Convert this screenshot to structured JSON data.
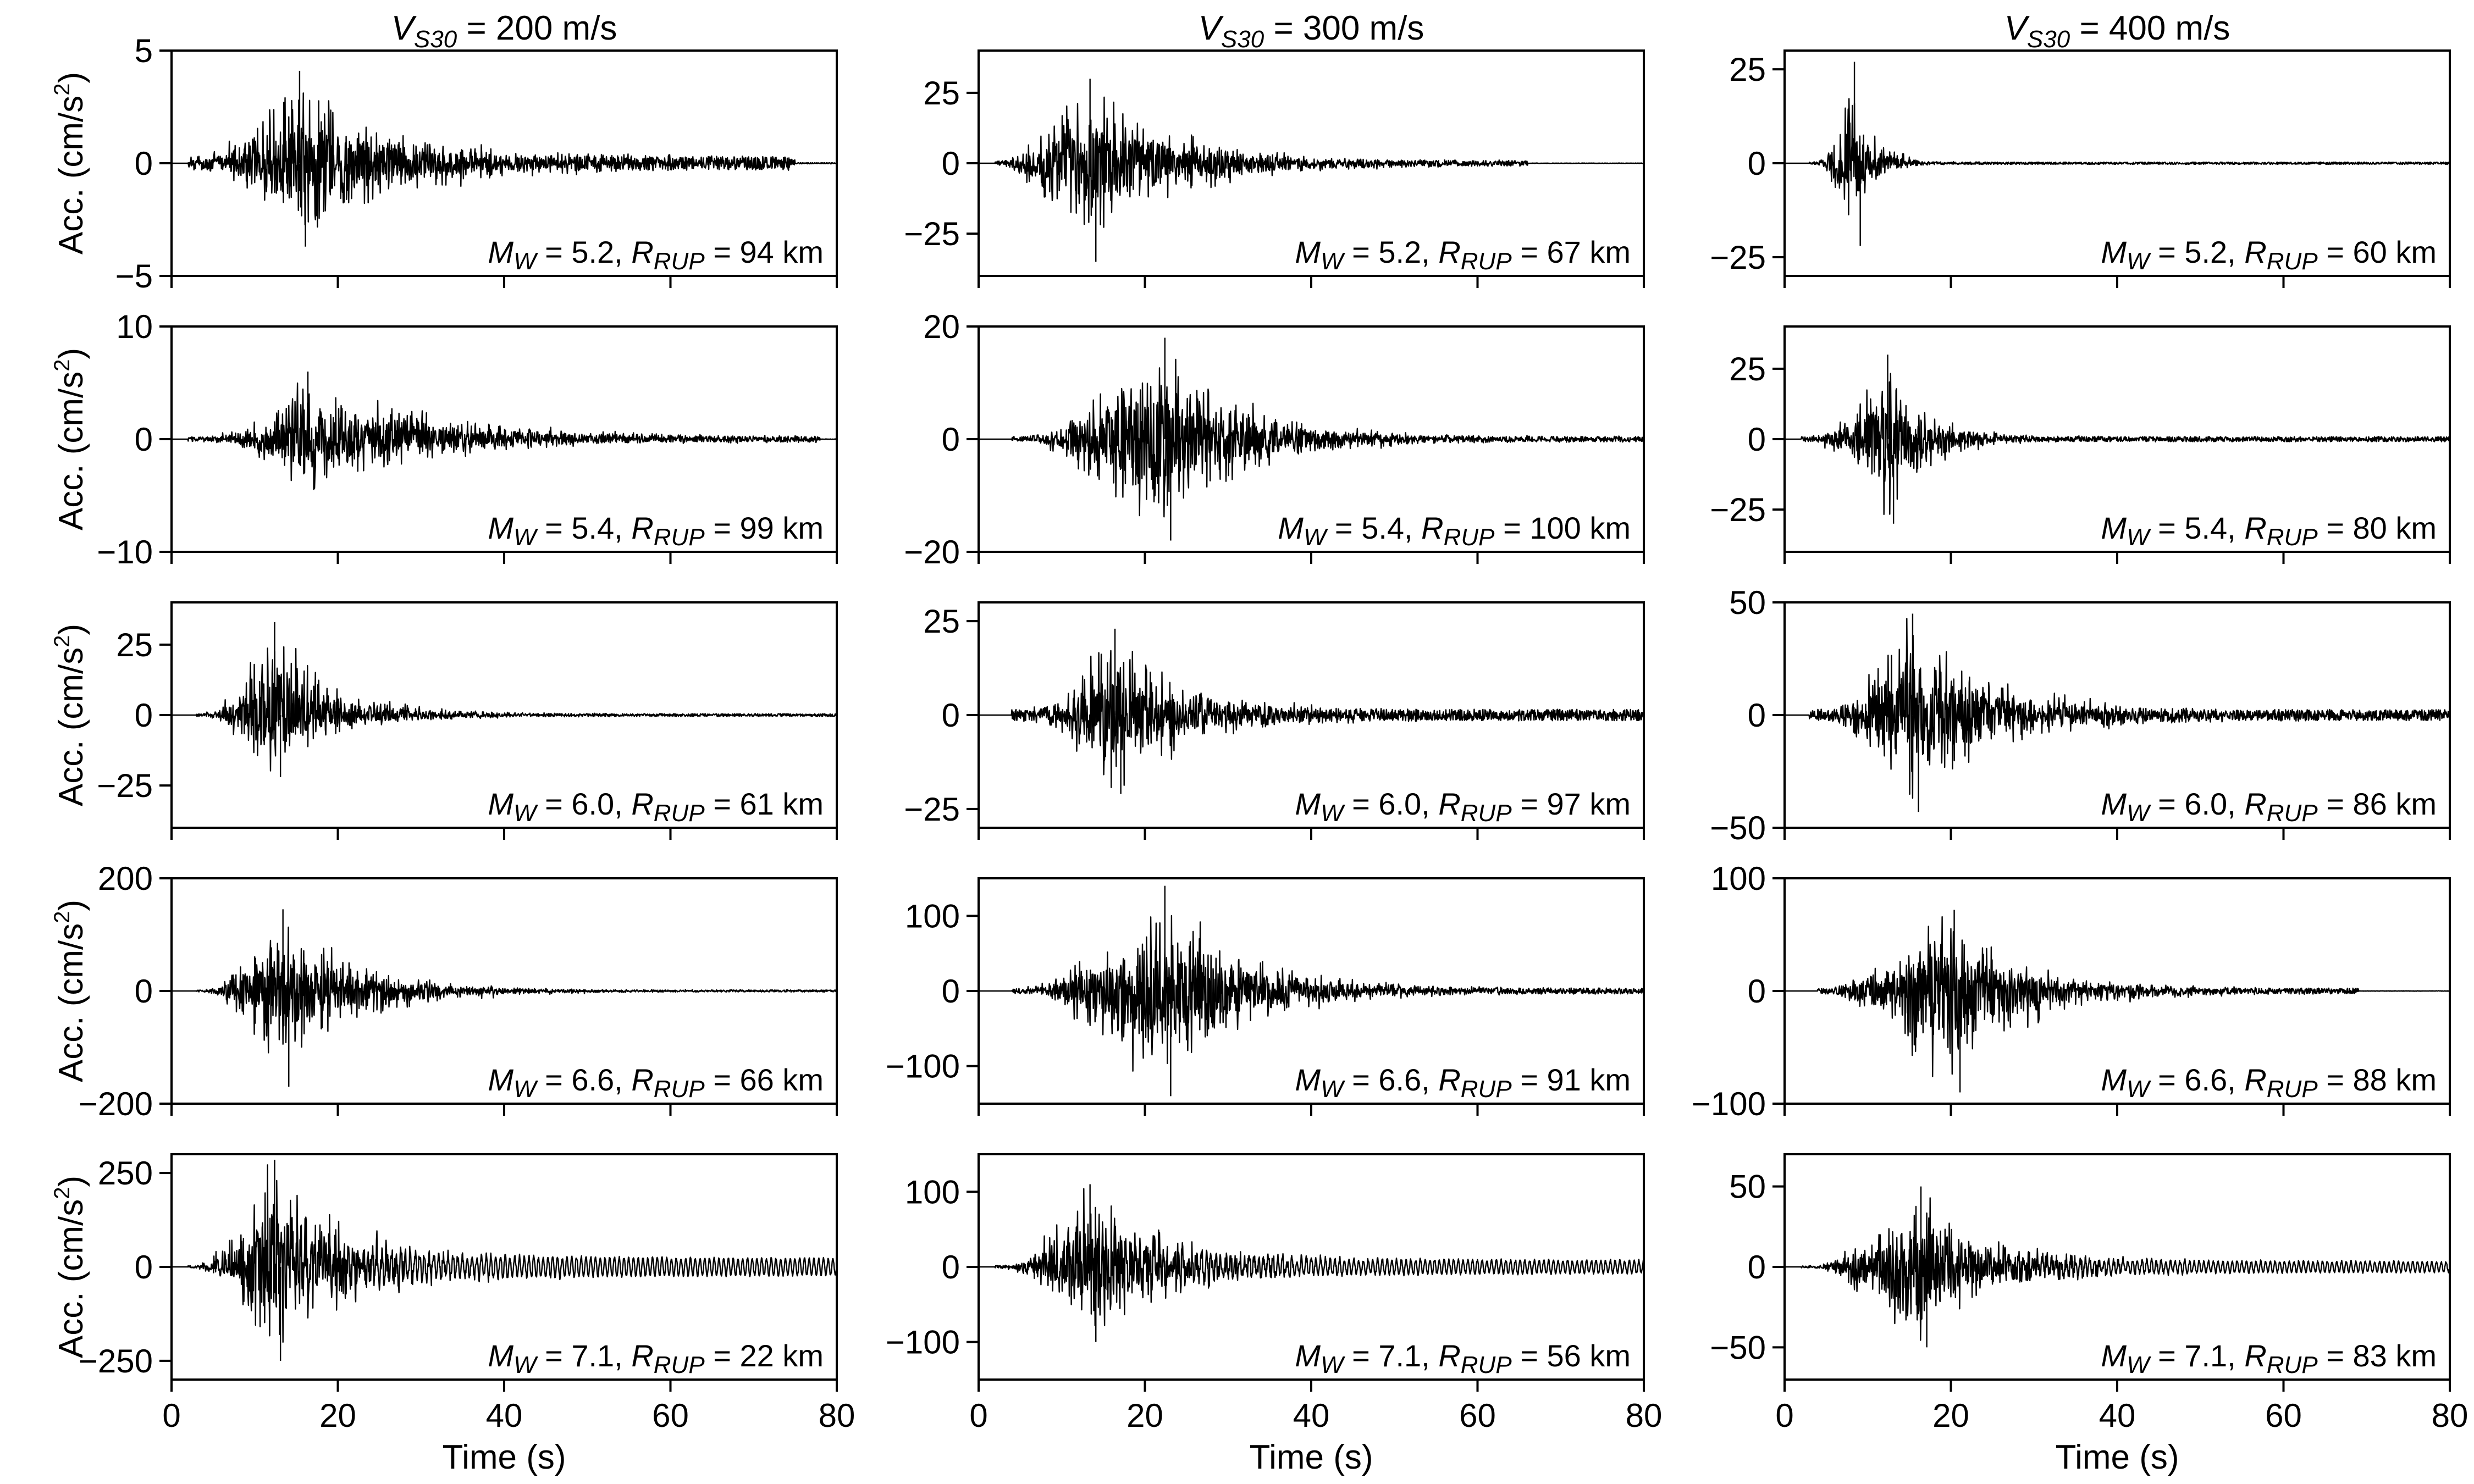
{
  "chart_data": {
    "type": "line",
    "title": "",
    "rows": 5,
    "columns": 3,
    "column_titles": [
      {
        "symbol": "V",
        "subscript": "S30",
        "text": " = 200 m/s"
      },
      {
        "symbol": "V",
        "subscript": "S30",
        "text": " = 300 m/s"
      },
      {
        "symbol": "V",
        "subscript": "S30",
        "text": " = 400 m/s"
      }
    ],
    "xlabel": "Time (s)",
    "ylabel": {
      "prefix": "Acc. (cm/s",
      "superscript": "2",
      "suffix": ")"
    },
    "xlim": [
      0,
      80
    ],
    "xticks": [
      0,
      20,
      40,
      60,
      80
    ],
    "annotation_format": {
      "m_symbol": "M",
      "m_sub": "W",
      "r_symbol": "R",
      "r_sub": "RUP",
      "unit": "km"
    },
    "panels": [
      {
        "row": 0,
        "col": 0,
        "vs30": 200,
        "mw": "5.2",
        "rrup": "94",
        "ylim": [
          -5,
          5
        ],
        "yticks": [
          -5,
          0,
          5
        ],
        "ytick_labels": [
          "−5",
          "0",
          "5"
        ],
        "trace": {
          "t_start": 2.0,
          "t_peak": 15.0,
          "t_end": 80.0,
          "peak_pos": 4.1,
          "peak_neg": -3.7,
          "noise": 0.5,
          "decay": 12.0,
          "rise": 4.0,
          "cut": 75.0,
          "osc_long": 0.0
        }
      },
      {
        "row": 0,
        "col": 1,
        "vs30": 300,
        "mw": "5.2",
        "rrup": "67",
        "ylim": [
          -40,
          40
        ],
        "yticks": [
          -25,
          0,
          25
        ],
        "ytick_labels": [
          "−25",
          "0",
          "25"
        ],
        "trace": {
          "t_start": 2.0,
          "t_peak": 13.0,
          "t_end": 66.0,
          "peak_pos": 30.0,
          "peak_neg": -35.0,
          "noise": 1.5,
          "decay": 11.0,
          "rise": 7.0,
          "cut": 66.0,
          "osc_long": 0.0
        }
      },
      {
        "row": 0,
        "col": 2,
        "vs30": 400,
        "mw": "5.2",
        "rrup": "60",
        "ylim": [
          -30,
          30
        ],
        "yticks": [
          -25,
          0,
          25
        ],
        "ytick_labels": [
          "−25",
          "0",
          "25"
        ],
        "trace": {
          "t_start": 3.0,
          "t_peak": 8.0,
          "t_end": 80.0,
          "peak_pos": 27.0,
          "peak_neg": -22.0,
          "noise": 0.5,
          "decay": 2.5,
          "rise": 1.0,
          "cut": 80.0,
          "osc_long": 0.0
        }
      },
      {
        "row": 1,
        "col": 0,
        "vs30": 200,
        "mw": "5.4",
        "rrup": "99",
        "ylim": [
          -10,
          10
        ],
        "yticks": [
          -10,
          0,
          10
        ],
        "ytick_labels": [
          "−10",
          "0",
          "10"
        ],
        "trace": {
          "t_start": 2.0,
          "t_peak": 16.0,
          "t_end": 80.0,
          "peak_pos": 6.0,
          "peak_neg": -4.5,
          "noise": 0.4,
          "decay": 16.0,
          "rise": 1.5,
          "cut": 78.0,
          "osc_long": 0.0
        }
      },
      {
        "row": 1,
        "col": 1,
        "vs30": 300,
        "mw": "5.4",
        "rrup": "100",
        "ylim": [
          -20,
          20
        ],
        "yticks": [
          -20,
          0,
          20
        ],
        "ytick_labels": [
          "−20",
          "0",
          "20"
        ],
        "trace": {
          "t_start": 4.0,
          "t_peak": 22.0,
          "t_end": 80.0,
          "peak_pos": 18.0,
          "peak_neg": -18.0,
          "noise": 0.8,
          "decay": 10.0,
          "rise": 10.0,
          "cut": 80.0,
          "osc_long": 0.0
        }
      },
      {
        "row": 1,
        "col": 2,
        "vs30": 400,
        "mw": "5.4",
        "rrup": "80",
        "ylim": [
          -40,
          40
        ],
        "yticks": [
          -25,
          0,
          25
        ],
        "ytick_labels": [
          "−25",
          "0",
          "25"
        ],
        "trace": {
          "t_start": 2.0,
          "t_peak": 12.0,
          "t_end": 80.0,
          "peak_pos": 30.0,
          "peak_neg": -30.0,
          "noise": 1.5,
          "decay": 5.0,
          "rise": 1.0,
          "cut": 80.0,
          "osc_long": 0.0
        }
      },
      {
        "row": 2,
        "col": 0,
        "vs30": 200,
        "mw": "6.0",
        "rrup": "61",
        "ylim": [
          -40,
          40
        ],
        "yticks": [
          -25,
          0,
          25
        ],
        "ytick_labels": [
          "−25",
          "0",
          "25"
        ],
        "trace": {
          "t_start": 3.0,
          "t_peak": 12.0,
          "t_end": 80.0,
          "peak_pos": 33.0,
          "peak_neg": -22.0,
          "noise": 0.8,
          "decay": 8.0,
          "rise": 4.0,
          "cut": 80.0,
          "osc_long": 0.0
        }
      },
      {
        "row": 2,
        "col": 1,
        "vs30": 300,
        "mw": "6.0",
        "rrup": "97",
        "ylim": [
          -30,
          30
        ],
        "yticks": [
          -25,
          0,
          25
        ],
        "ytick_labels": [
          "−25",
          "0",
          "25"
        ],
        "trace": {
          "t_start": 4.0,
          "t_peak": 16.0,
          "t_end": 80.0,
          "peak_pos": 23.0,
          "peak_neg": -21.0,
          "noise": 2.5,
          "decay": 9.0,
          "rise": 1.5,
          "cut": 80.0,
          "osc_long": 0.0
        }
      },
      {
        "row": 2,
        "col": 2,
        "vs30": 400,
        "mw": "6.0",
        "rrup": "86",
        "ylim": [
          -50,
          50
        ],
        "yticks": [
          -50,
          0,
          50
        ],
        "ytick_labels": [
          "−50",
          "0",
          "50"
        ],
        "trace": {
          "t_start": 3.0,
          "t_peak": 15.0,
          "t_end": 80.0,
          "peak_pos": 45.0,
          "peak_neg": -43.0,
          "noise": 4.0,
          "decay": 10.0,
          "rise": 1.5,
          "cut": 80.0,
          "osc_long": 0.0
        }
      },
      {
        "row": 3,
        "col": 0,
        "vs30": 200,
        "mw": "6.6",
        "rrup": "66",
        "ylim": [
          -200,
          200
        ],
        "yticks": [
          -200,
          0,
          200
        ],
        "ytick_labels": [
          "−200",
          "0",
          "200"
        ],
        "trace": {
          "t_start": 3.0,
          "t_peak": 13.0,
          "t_end": 80.0,
          "peak_pos": 145.0,
          "peak_neg": -170.0,
          "noise": 3.0,
          "decay": 9.0,
          "rise": 4.0,
          "cut": 80.0,
          "osc_long": 0.0
        }
      },
      {
        "row": 3,
        "col": 1,
        "vs30": 300,
        "mw": "6.6",
        "rrup": "91",
        "ylim": [
          -150,
          150
        ],
        "yticks": [
          -100,
          0,
          100
        ],
        "ytick_labels": [
          "−100",
          "0",
          "100"
        ],
        "trace": {
          "t_start": 4.0,
          "t_peak": 22.0,
          "t_end": 80.0,
          "peak_pos": 140.0,
          "peak_neg": -140.0,
          "noise": 6.0,
          "decay": 10.0,
          "rise": 9.0,
          "cut": 80.0,
          "osc_long": 0.0
        }
      },
      {
        "row": 3,
        "col": 2,
        "vs30": 400,
        "mw": "6.6",
        "rrup": "88",
        "ylim": [
          -100,
          100
        ],
        "yticks": [
          -100,
          0,
          100
        ],
        "ytick_labels": [
          "−100",
          "0",
          "100"
        ],
        "trace": {
          "t_start": 4.0,
          "t_peak": 20.0,
          "t_end": 69.0,
          "peak_pos": 72.0,
          "peak_neg": -90.0,
          "noise": 4.0,
          "decay": 9.0,
          "rise": 14.0,
          "cut": 69.0,
          "osc_long": 0.0
        }
      },
      {
        "row": 4,
        "col": 0,
        "vs30": 200,
        "mw": "7.1",
        "rrup": "22",
        "ylim": [
          -300,
          300
        ],
        "yticks": [
          -250,
          0,
          250
        ],
        "ytick_labels": [
          "−250",
          "0",
          "250"
        ],
        "trace": {
          "t_start": 2.0,
          "t_peak": 12.0,
          "t_end": 80.0,
          "peak_pos": 285.0,
          "peak_neg": -250.0,
          "noise": 5.0,
          "decay": 9.0,
          "rise": 4.0,
          "cut": 80.0,
          "osc_long": 35.0
        }
      },
      {
        "row": 4,
        "col": 1,
        "vs30": 300,
        "mw": "7.1",
        "rrup": "56",
        "ylim": [
          -150,
          150
        ],
        "yticks": [
          -100,
          0,
          100
        ],
        "ytick_labels": [
          "−100",
          "0",
          "100"
        ],
        "trace": {
          "t_start": 2.0,
          "t_peak": 13.0,
          "t_end": 80.0,
          "peak_pos": 110.0,
          "peak_neg": -100.0,
          "noise": 3.0,
          "decay": 10.0,
          "rise": 4.0,
          "cut": 80.0,
          "osc_long": 13.0
        }
      },
      {
        "row": 4,
        "col": 2,
        "vs30": 400,
        "mw": "7.1",
        "rrup": "83",
        "ylim": [
          -70,
          70
        ],
        "yticks": [
          -50,
          0,
          50
        ],
        "ytick_labels": [
          "−50",
          "0",
          "50"
        ],
        "trace": {
          "t_start": 2.0,
          "t_peak": 16.0,
          "t_end": 80.0,
          "peak_pos": 50.0,
          "peak_neg": -50.0,
          "noise": 1.0,
          "decay": 9.0,
          "rise": 5.0,
          "cut": 80.0,
          "osc_long": 5.0
        }
      }
    ]
  }
}
